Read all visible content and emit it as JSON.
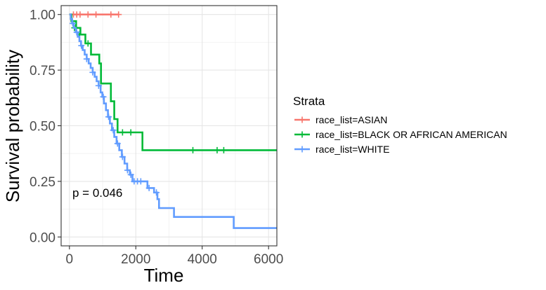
{
  "chart_data": {
    "type": "line",
    "subtype": "kaplan-meier-step",
    "xlabel": "Time",
    "ylabel": "Survival probability",
    "xlim": [
      -250,
      6250
    ],
    "ylim": [
      -0.04,
      1.04
    ],
    "x_ticks": [
      0,
      2000,
      4000,
      6000
    ],
    "x_tick_labels": [
      "0",
      "2000",
      "4000",
      "6000"
    ],
    "y_ticks": [
      0.0,
      0.25,
      0.5,
      0.75,
      1.0
    ],
    "y_tick_labels": [
      "0.00",
      "0.25",
      "0.50",
      "0.75",
      "1.00"
    ],
    "grid": true,
    "legend": {
      "title": "Strata",
      "position": "right"
    },
    "annotation": "p = 0.046",
    "series": [
      {
        "name": "race_list=ASIAN",
        "color": "#F8766D",
        "steps": [
          [
            0,
            1.0
          ],
          [
            1500,
            1.0
          ]
        ],
        "censor_x": [
          120,
          220,
          320,
          560,
          800,
          1250,
          1480
        ],
        "censor_y": [
          1.0,
          1.0,
          1.0,
          1.0,
          1.0,
          1.0,
          1.0
        ]
      },
      {
        "name": "race_list=BLACK OR AFRICAN AMERICAN",
        "color": "#00BA38",
        "steps": [
          [
            0,
            1.0
          ],
          [
            60,
            0.97
          ],
          [
            200,
            0.94
          ],
          [
            330,
            0.91
          ],
          [
            480,
            0.87
          ],
          [
            650,
            0.82
          ],
          [
            900,
            0.78
          ],
          [
            950,
            0.69
          ],
          [
            1250,
            0.61
          ],
          [
            1350,
            0.53
          ],
          [
            1450,
            0.47
          ],
          [
            2200,
            0.39
          ],
          [
            6300,
            0.39
          ]
        ],
        "censor_x": [
          150,
          300,
          560,
          1600,
          1850,
          3720,
          4450,
          4650
        ],
        "censor_y": [
          0.94,
          0.91,
          0.87,
          0.47,
          0.47,
          0.39,
          0.39,
          0.39
        ]
      },
      {
        "name": "race_list=WHITE",
        "color": "#619CFF",
        "steps": [
          [
            0,
            1.0
          ],
          [
            40,
            0.98
          ],
          [
            80,
            0.96
          ],
          [
            130,
            0.94
          ],
          [
            190,
            0.92
          ],
          [
            250,
            0.9
          ],
          [
            300,
            0.88
          ],
          [
            350,
            0.86
          ],
          [
            400,
            0.84
          ],
          [
            460,
            0.82
          ],
          [
            520,
            0.8
          ],
          [
            580,
            0.78
          ],
          [
            640,
            0.76
          ],
          [
            700,
            0.74
          ],
          [
            760,
            0.72
          ],
          [
            820,
            0.7
          ],
          [
            880,
            0.68
          ],
          [
            940,
            0.65
          ],
          [
            990,
            0.63
          ],
          [
            1040,
            0.6
          ],
          [
            1100,
            0.57
          ],
          [
            1160,
            0.54
          ],
          [
            1220,
            0.51
          ],
          [
            1280,
            0.48
          ],
          [
            1350,
            0.45
          ],
          [
            1420,
            0.42
          ],
          [
            1500,
            0.39
          ],
          [
            1580,
            0.36
          ],
          [
            1660,
            0.33
          ],
          [
            1740,
            0.3
          ],
          [
            1820,
            0.28
          ],
          [
            1900,
            0.25
          ],
          [
            2350,
            0.22
          ],
          [
            2550,
            0.2
          ],
          [
            2650,
            0.17
          ],
          [
            2700,
            0.13
          ],
          [
            3150,
            0.09
          ],
          [
            4950,
            0.04
          ],
          [
            6300,
            0.04
          ]
        ],
        "censor_x": [
          100,
          220,
          360,
          520,
          700,
          880,
          1020,
          1180,
          1320,
          1450,
          1600,
          1750,
          1850,
          1950,
          2050,
          2150,
          2400,
          2620
        ],
        "censor_y": [
          0.96,
          0.92,
          0.86,
          0.8,
          0.74,
          0.68,
          0.63,
          0.54,
          0.48,
          0.42,
          0.36,
          0.3,
          0.28,
          0.25,
          0.25,
          0.25,
          0.22,
          0.2
        ]
      }
    ]
  }
}
